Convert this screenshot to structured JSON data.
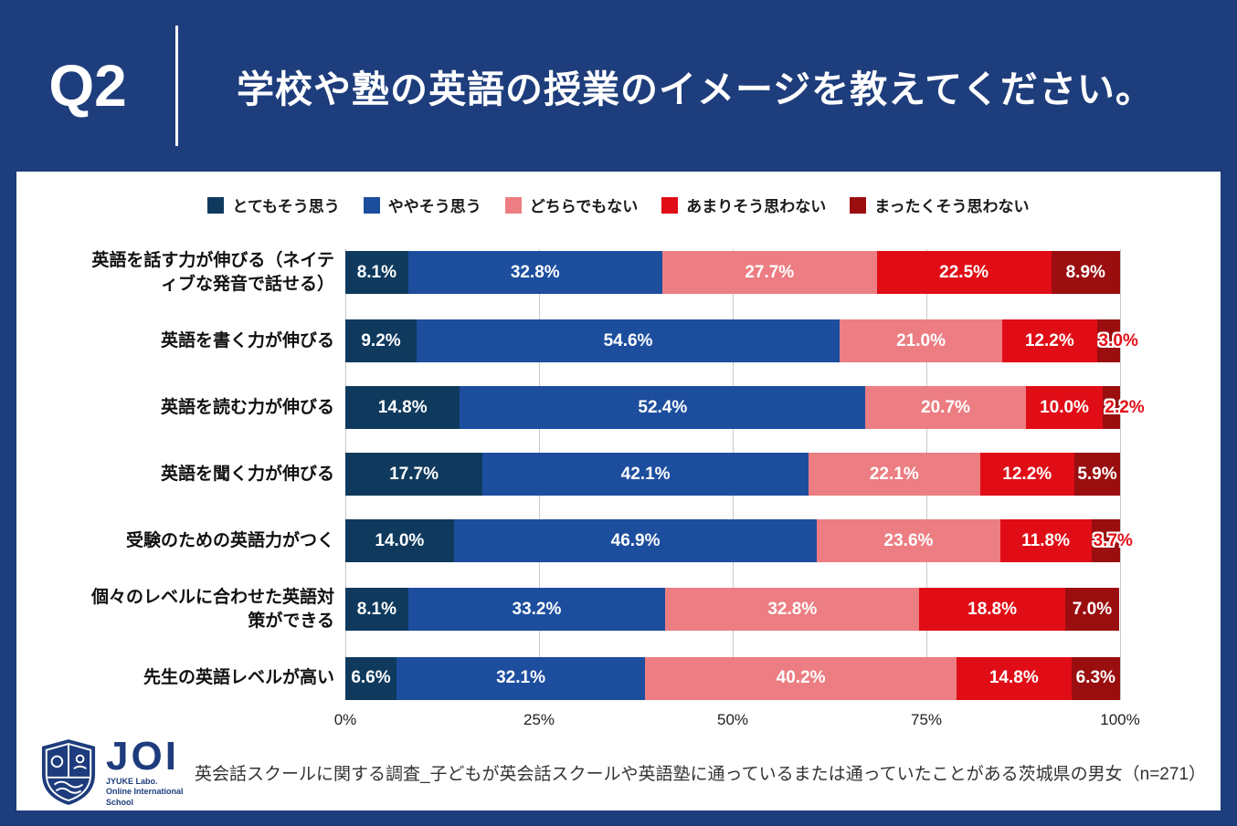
{
  "header": {
    "q_label": "Q2",
    "title": "学校や塾の英語の授業のイメージを教えてください。"
  },
  "colors": {
    "background": "#1e3d7c",
    "panel": "#ffffff",
    "gridline": "#c9c9c9",
    "small_label": "#e00d16",
    "series": [
      "#0f3a5e",
      "#1d4e9e",
      "#ec7d82",
      "#e00d16",
      "#9a0e10"
    ]
  },
  "chart_data": {
    "type": "bar",
    "stacked": true,
    "orientation": "horizontal",
    "unit": "%",
    "legend": [
      "とてもそう思う",
      "ややそう思う",
      "どちらでもない",
      "あまりそう思わない",
      "まったくそう思わない"
    ],
    "categories": [
      "英語を話す力が伸びる（ネイティブな発音で話せる）",
      "英語を書く力が伸びる",
      "英語を読む力が伸びる",
      "英語を聞く力が伸びる",
      "受験のための英語力がつく",
      "個々のレベルに合わせた英語対策ができる",
      "先生の英語レベルが高い"
    ],
    "series": [
      {
        "name": "とてもそう思う",
        "values": [
          8.1,
          9.2,
          14.8,
          17.7,
          14.0,
          8.1,
          6.6
        ]
      },
      {
        "name": "ややそう思う",
        "values": [
          32.8,
          54.6,
          52.4,
          42.1,
          46.9,
          33.2,
          32.1
        ]
      },
      {
        "name": "どちらでもない",
        "values": [
          27.7,
          21.0,
          20.7,
          22.1,
          23.6,
          32.8,
          40.2
        ]
      },
      {
        "name": "あまりそう思わない",
        "values": [
          22.5,
          12.2,
          10.0,
          12.2,
          11.8,
          18.8,
          14.8
        ]
      },
      {
        "name": "まったくそう思わない",
        "values": [
          8.9,
          3.0,
          2.2,
          5.9,
          3.7,
          7.0,
          6.3
        ]
      }
    ],
    "xticks": [
      "0%",
      "25%",
      "50%",
      "75%",
      "100%"
    ],
    "xlim": [
      0,
      100
    ],
    "grid": true,
    "legend_position": "top"
  },
  "footer": {
    "logo_main": "JOI",
    "logo_sub1": "JYUKE Labo.",
    "logo_sub2": "Online International School",
    "caption": "英会話スクールに関する調査_子どもが英会話スクールや英語塾に通っているまたは通っていたことがある茨城県の男女（n=271）"
  }
}
